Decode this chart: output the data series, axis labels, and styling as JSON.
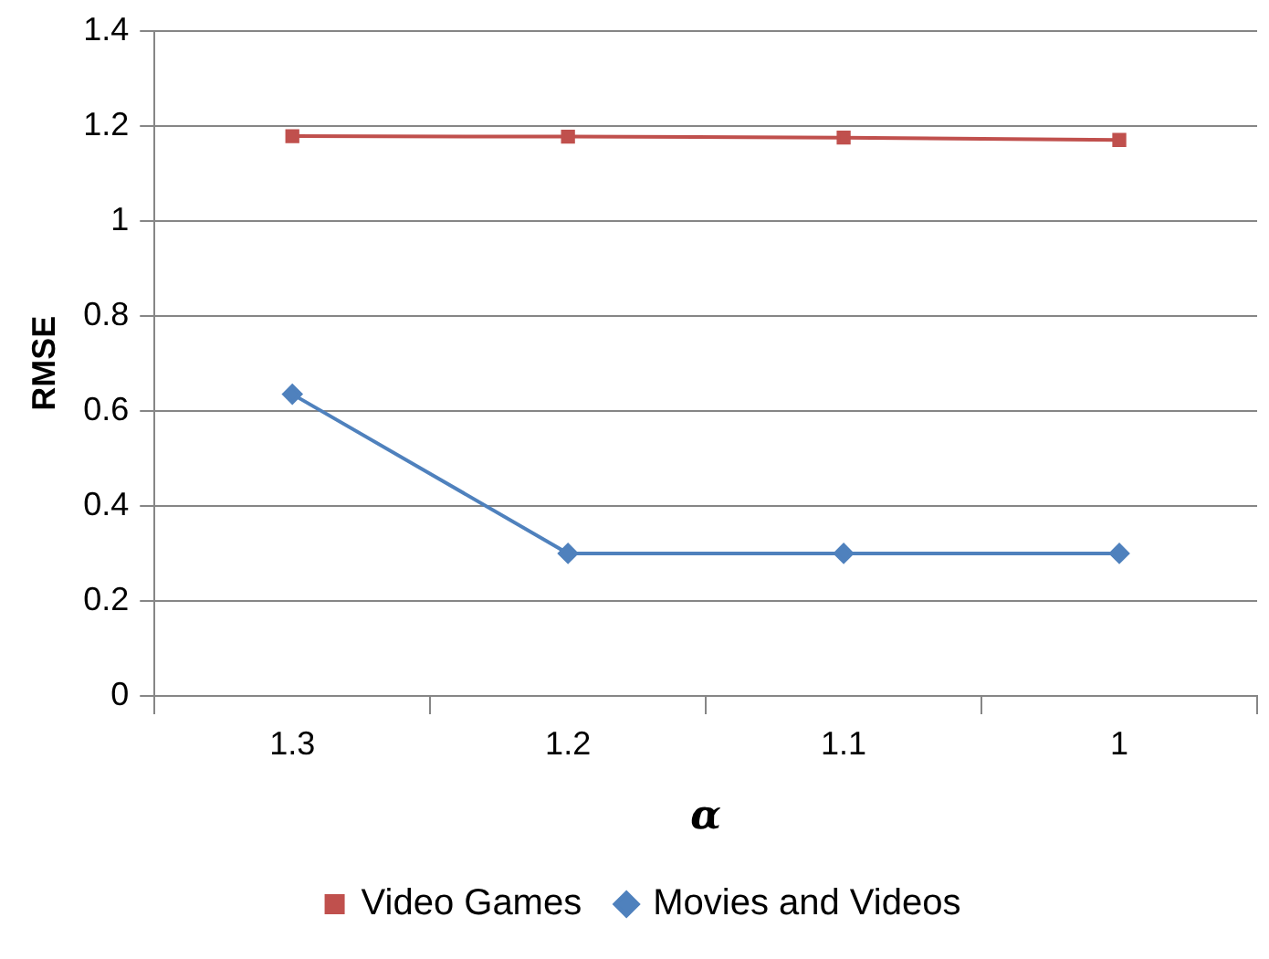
{
  "chart_data": {
    "type": "line",
    "xlabel": "α",
    "ylabel": "RMSE",
    "categories": [
      "1.3",
      "1.2",
      "1.1",
      "1"
    ],
    "series": [
      {
        "name": "Video Games",
        "color": "#c0504d",
        "marker": "square",
        "values": [
          1.178,
          1.177,
          1.175,
          1.17
        ]
      },
      {
        "name": "Movies and Videos",
        "color": "#4f81bd",
        "marker": "diamond",
        "values": [
          0.635,
          0.3,
          0.3,
          0.3
        ]
      }
    ],
    "ylim": [
      0,
      1.4
    ],
    "yticks": [
      0,
      0.2,
      0.4,
      0.6,
      0.8,
      1,
      1.2,
      1.4
    ],
    "grid": "y",
    "legend": "bottom",
    "line_style": "solid"
  }
}
